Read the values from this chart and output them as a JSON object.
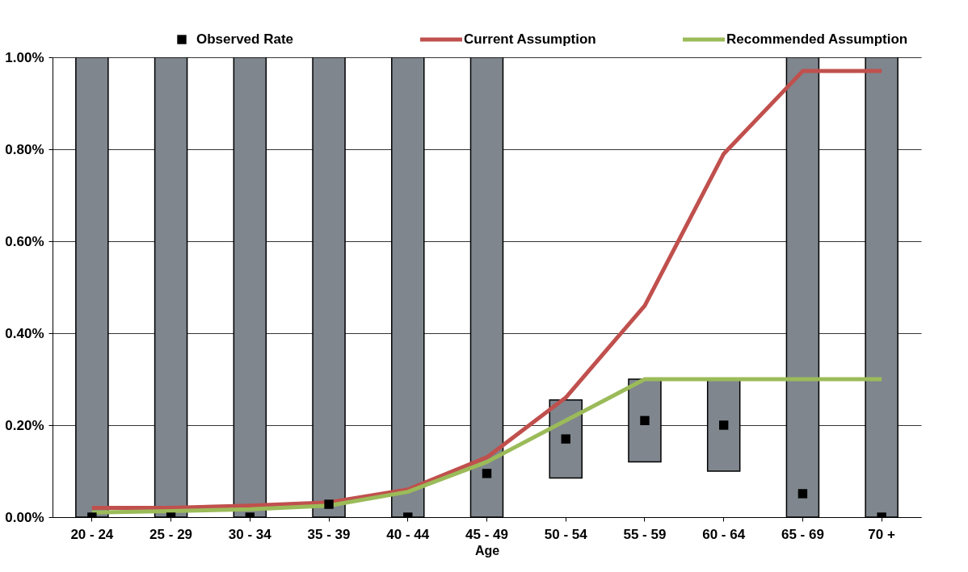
{
  "chart_data": {
    "type": "bar",
    "xlabel": "Age",
    "categories": [
      "20 - 24",
      "25 - 29",
      "30 - 34",
      "35 - 39",
      "40 - 44",
      "45 - 49",
      "50 - 54",
      "55 - 59",
      "60 - 64",
      "65 - 69",
      "70 +"
    ],
    "series": [
      {
        "color": "#7f868e",
        "base": [
          0,
          0,
          0,
          0,
          0,
          0,
          0.085,
          0.12,
          0.1,
          0,
          0
        ],
        "values": [
          1.0,
          1.0,
          1.0,
          1.0,
          1.0,
          1.0,
          0.17,
          0.18,
          0.2,
          1.0,
          1.0
        ]
      },
      {
        "type": "scatter",
        "name": "Observed Rate",
        "color": "#000000",
        "marker": "square",
        "values": [
          0,
          0,
          0,
          0.028,
          0,
          0.095,
          0.17,
          0.21,
          0.2,
          0.051,
          0
        ]
      },
      {
        "type": "line",
        "name": "Current Assumption",
        "color": "#c0504d",
        "values": [
          0.02,
          0.02,
          0.025,
          0.032,
          0.06,
          0.13,
          0.26,
          0.46,
          0.79,
          0.97,
          0.97
        ]
      },
      {
        "type": "line",
        "name": "Recommended Assumption",
        "color": "#9bbb59",
        "values": [
          0.01,
          0.013,
          0.017,
          0.025,
          0.055,
          0.12,
          0.21,
          0.3,
          0.3,
          0.3,
          0.3
        ]
      }
    ],
    "ylim": [
      0,
      1.0
    ],
    "yticks": [
      {
        "value": 0,
        "label": "0.00%"
      },
      {
        "value": 0.2,
        "label": "0.20%"
      },
      {
        "value": 0.4,
        "label": "0.40%"
      },
      {
        "value": 0.6,
        "label": "0.60%"
      },
      {
        "value": 0.8,
        "label": "0.80%"
      },
      {
        "value": 1.0,
        "label": "1.00%"
      }
    ],
    "grid": "y",
    "legend": "top"
  }
}
